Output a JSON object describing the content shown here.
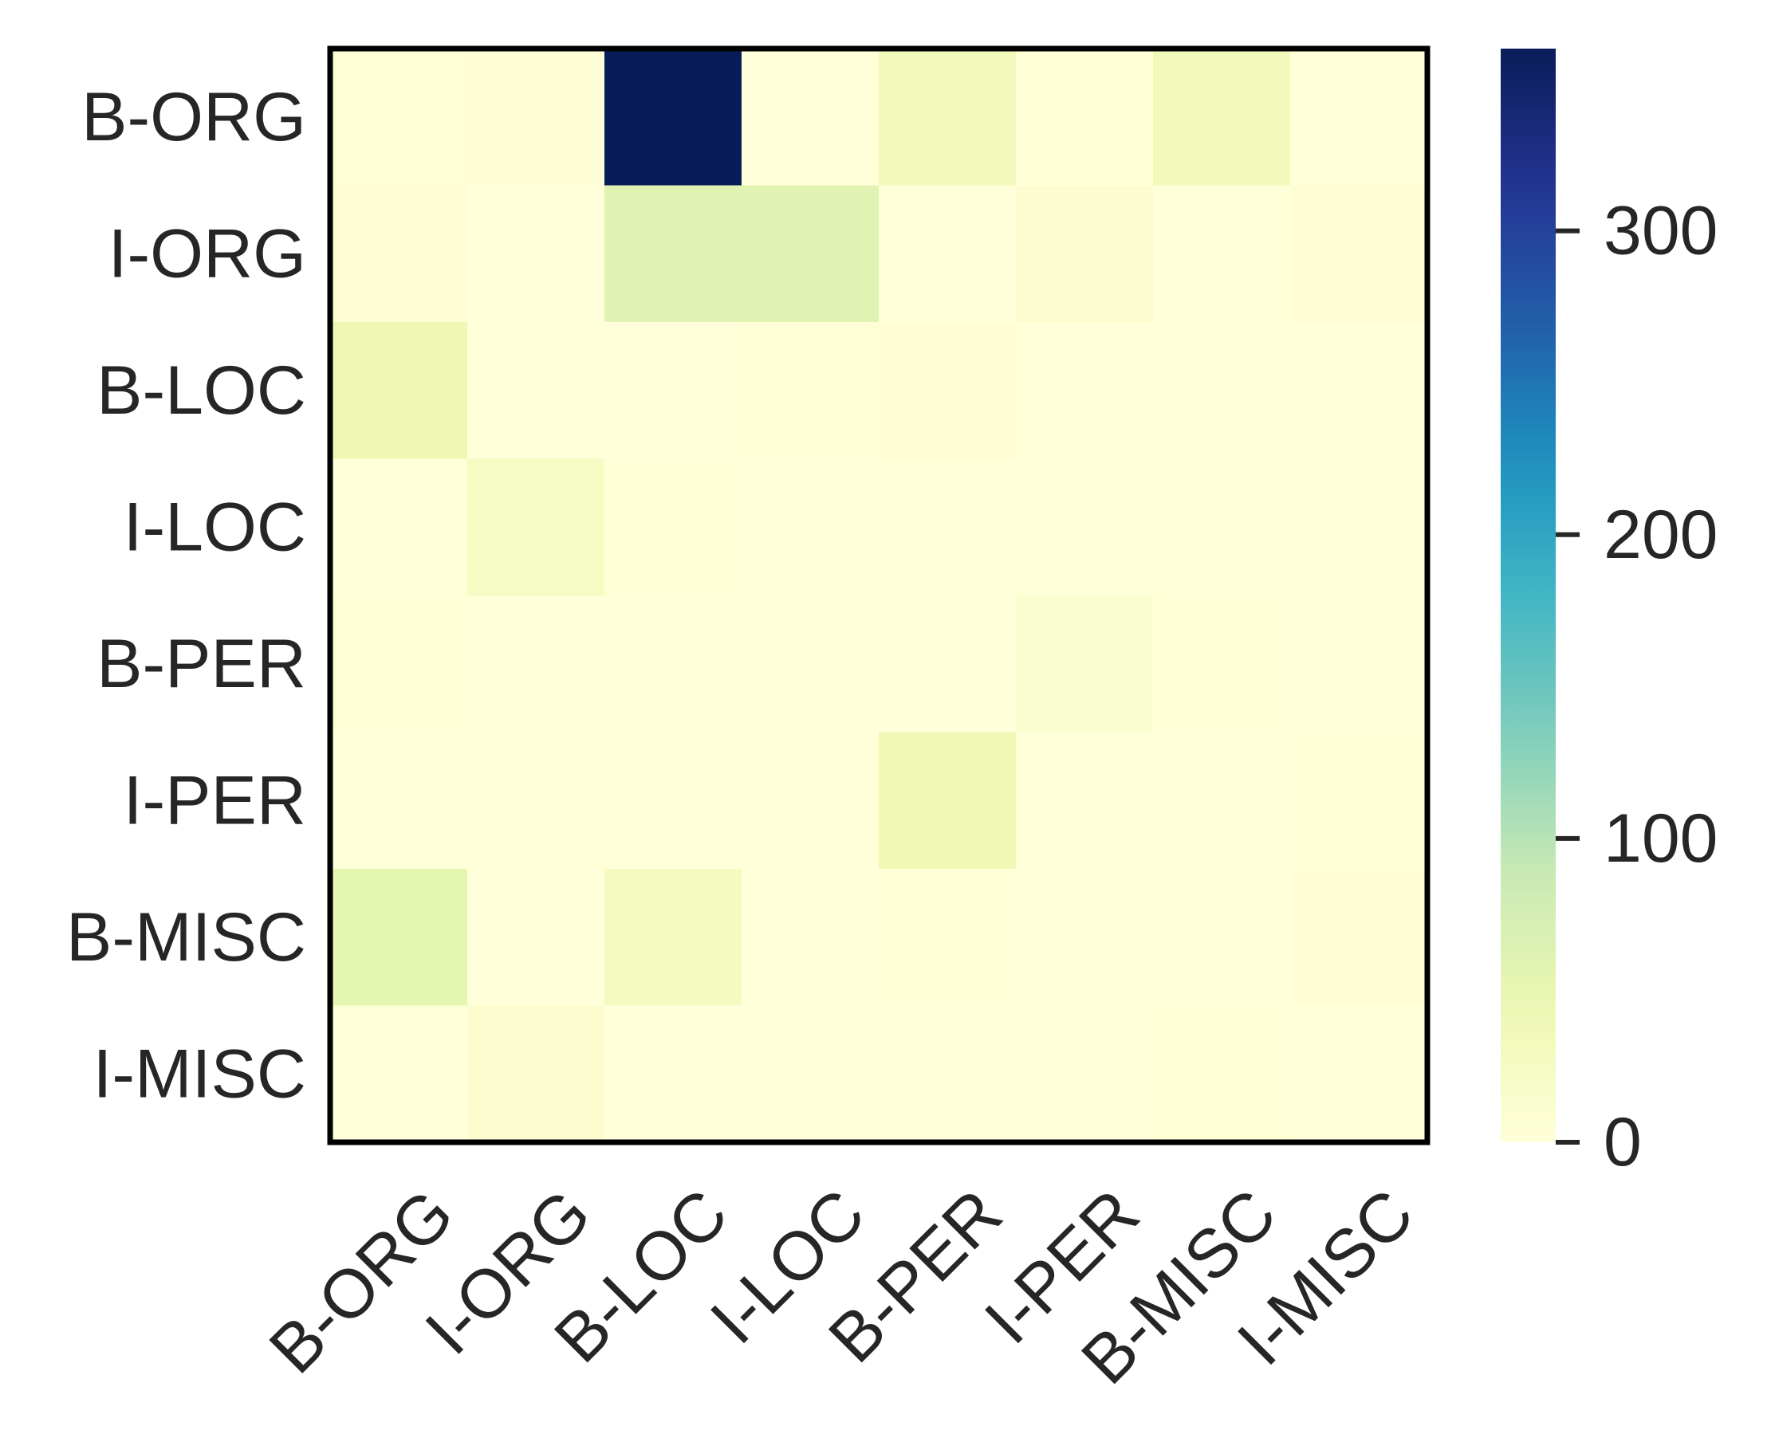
{
  "chart_data": {
    "type": "heatmap",
    "title": "",
    "xlabel": "",
    "ylabel": "",
    "row_labels": [
      "B-ORG",
      "I-ORG",
      "B-LOC",
      "I-LOC",
      "B-PER",
      "I-PER",
      "B-MISC",
      "I-MISC"
    ],
    "col_labels": [
      "B-ORG",
      "I-ORG",
      "B-LOC",
      "I-LOC",
      "B-PER",
      "I-PER",
      "B-MISC",
      "I-MISC"
    ],
    "values": [
      [
        3,
        5,
        360,
        0,
        34,
        1,
        35,
        0
      ],
      [
        6,
        0,
        60,
        60,
        0,
        10,
        0,
        6
      ],
      [
        42,
        0,
        0,
        3,
        6,
        0,
        0,
        0
      ],
      [
        0,
        26,
        3,
        0,
        0,
        0,
        0,
        0
      ],
      [
        3,
        0,
        0,
        0,
        0,
        12,
        3,
        0
      ],
      [
        0,
        0,
        0,
        0,
        40,
        0,
        0,
        3
      ],
      [
        54,
        0,
        28,
        0,
        3,
        0,
        0,
        5
      ],
      [
        0,
        11,
        0,
        0,
        0,
        0,
        3,
        0
      ]
    ],
    "colorbar": {
      "colormap": "YlGnBu",
      "vmin": 0,
      "vmax": 360,
      "ticks": [
        0,
        100,
        200,
        300
      ],
      "tick_labels": [
        "0",
        "100",
        "200",
        "300"
      ]
    },
    "colors": {
      "frame": "#000000",
      "text": "#262626",
      "background": "#ffffff"
    }
  }
}
